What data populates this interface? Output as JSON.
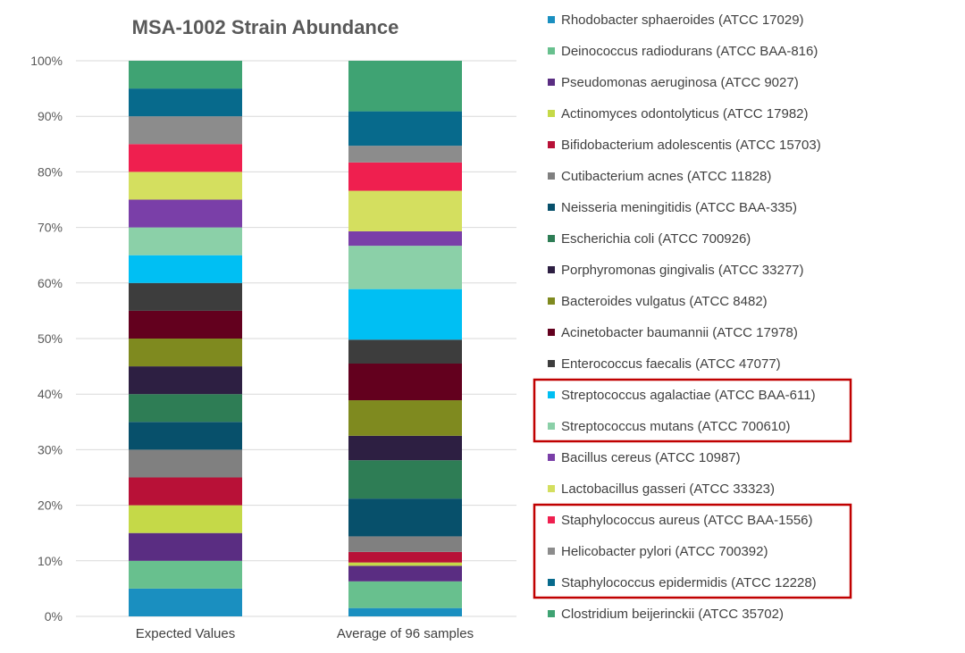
{
  "chart_data": {
    "type": "bar",
    "stacked": true,
    "title": "MSA-1002 Strain Abundance",
    "categories": [
      "Expected Values",
      "Average of 96 samples"
    ],
    "ylim": [
      0,
      100
    ],
    "yticks": [
      "0%",
      "10%",
      "20%",
      "30%",
      "40%",
      "50%",
      "60%",
      "70%",
      "80%",
      "90%",
      "100%"
    ],
    "grid": true,
    "legend_placement": "right",
    "series": [
      {
        "name": "Rhodobacter sphaeroides (ATCC 17029)",
        "color": "#1a8fc0",
        "values": [
          5,
          1.5
        ]
      },
      {
        "name": "Deinococcus radiodurans (ATCC BAA-816)",
        "color": "#68c08e",
        "values": [
          5,
          4.8
        ]
      },
      {
        "name": "Pseudomonas aeruginosa (ATCC 9027)",
        "color": "#5a2d82",
        "values": [
          5,
          2.8
        ]
      },
      {
        "name": "Actinomyces odontolyticus (ATCC 17982)",
        "color": "#c5d948",
        "values": [
          5,
          0.6
        ]
      },
      {
        "name": "Bifidobacterium adolescentis (ATCC 15703)",
        "color": "#b81137",
        "values": [
          5,
          1.9
        ]
      },
      {
        "name": "Cutibacterium acnes (ATCC 11828)",
        "color": "#808080",
        "values": [
          5,
          2.8
        ]
      },
      {
        "name": "Neisseria meningitidis (ATCC BAA-335)",
        "color": "#07506b",
        "values": [
          5,
          6.8
        ]
      },
      {
        "name": "Escherichia coli (ATCC 700926)",
        "color": "#2e7d55",
        "values": [
          5,
          6.9
        ]
      },
      {
        "name": "Porphyromonas gingivalis (ATCC 33277)",
        "color": "#2d1f42",
        "values": [
          5,
          4.4
        ]
      },
      {
        "name": "Bacteroides vulgatus (ATCC 8482)",
        "color": "#7f8a1f",
        "values": [
          5,
          6.4
        ]
      },
      {
        "name": "Acinetobacter baumannii (ATCC 17978)",
        "color": "#63001e",
        "values": [
          5,
          6.6
        ]
      },
      {
        "name": "Enterococcus faecalis (ATCC 47077)",
        "color": "#3d3d3d",
        "values": [
          5,
          4.3
        ]
      },
      {
        "name": "Streptococcus agalactiae (ATCC BAA-611)",
        "color": "#00bff3",
        "values": [
          5,
          9.1
        ]
      },
      {
        "name": "Streptococcus mutans (ATCC 700610)",
        "color": "#8bd0a8",
        "values": [
          5,
          7.8
        ]
      },
      {
        "name": "Bacillus cereus (ATCC 10987)",
        "color": "#7a3fa8",
        "values": [
          5,
          2.6
        ]
      },
      {
        "name": "Lactobacillus gasseri (ATCC 33323)",
        "color": "#d4df5f",
        "values": [
          5,
          7.3
        ]
      },
      {
        "name": "Staphylococcus aureus (ATCC BAA-1556)",
        "color": "#ef1f4f",
        "values": [
          5,
          5.1
        ]
      },
      {
        "name": "Helicobacter pylori (ATCC 700392)",
        "color": "#8c8c8c",
        "values": [
          5,
          3.0
        ]
      },
      {
        "name": "Staphylococcus epidermidis (ATCC 12228)",
        "color": "#076a8c",
        "values": [
          5,
          6.2
        ]
      },
      {
        "name": "Clostridium beijerinckii (ATCC 35702)",
        "color": "#3fa373",
        "values": [
          5,
          9.1
        ]
      }
    ],
    "highlight_color": "#c00000",
    "highlighted_legend_groups": [
      [
        12,
        13
      ],
      [
        16,
        17,
        18
      ]
    ]
  }
}
